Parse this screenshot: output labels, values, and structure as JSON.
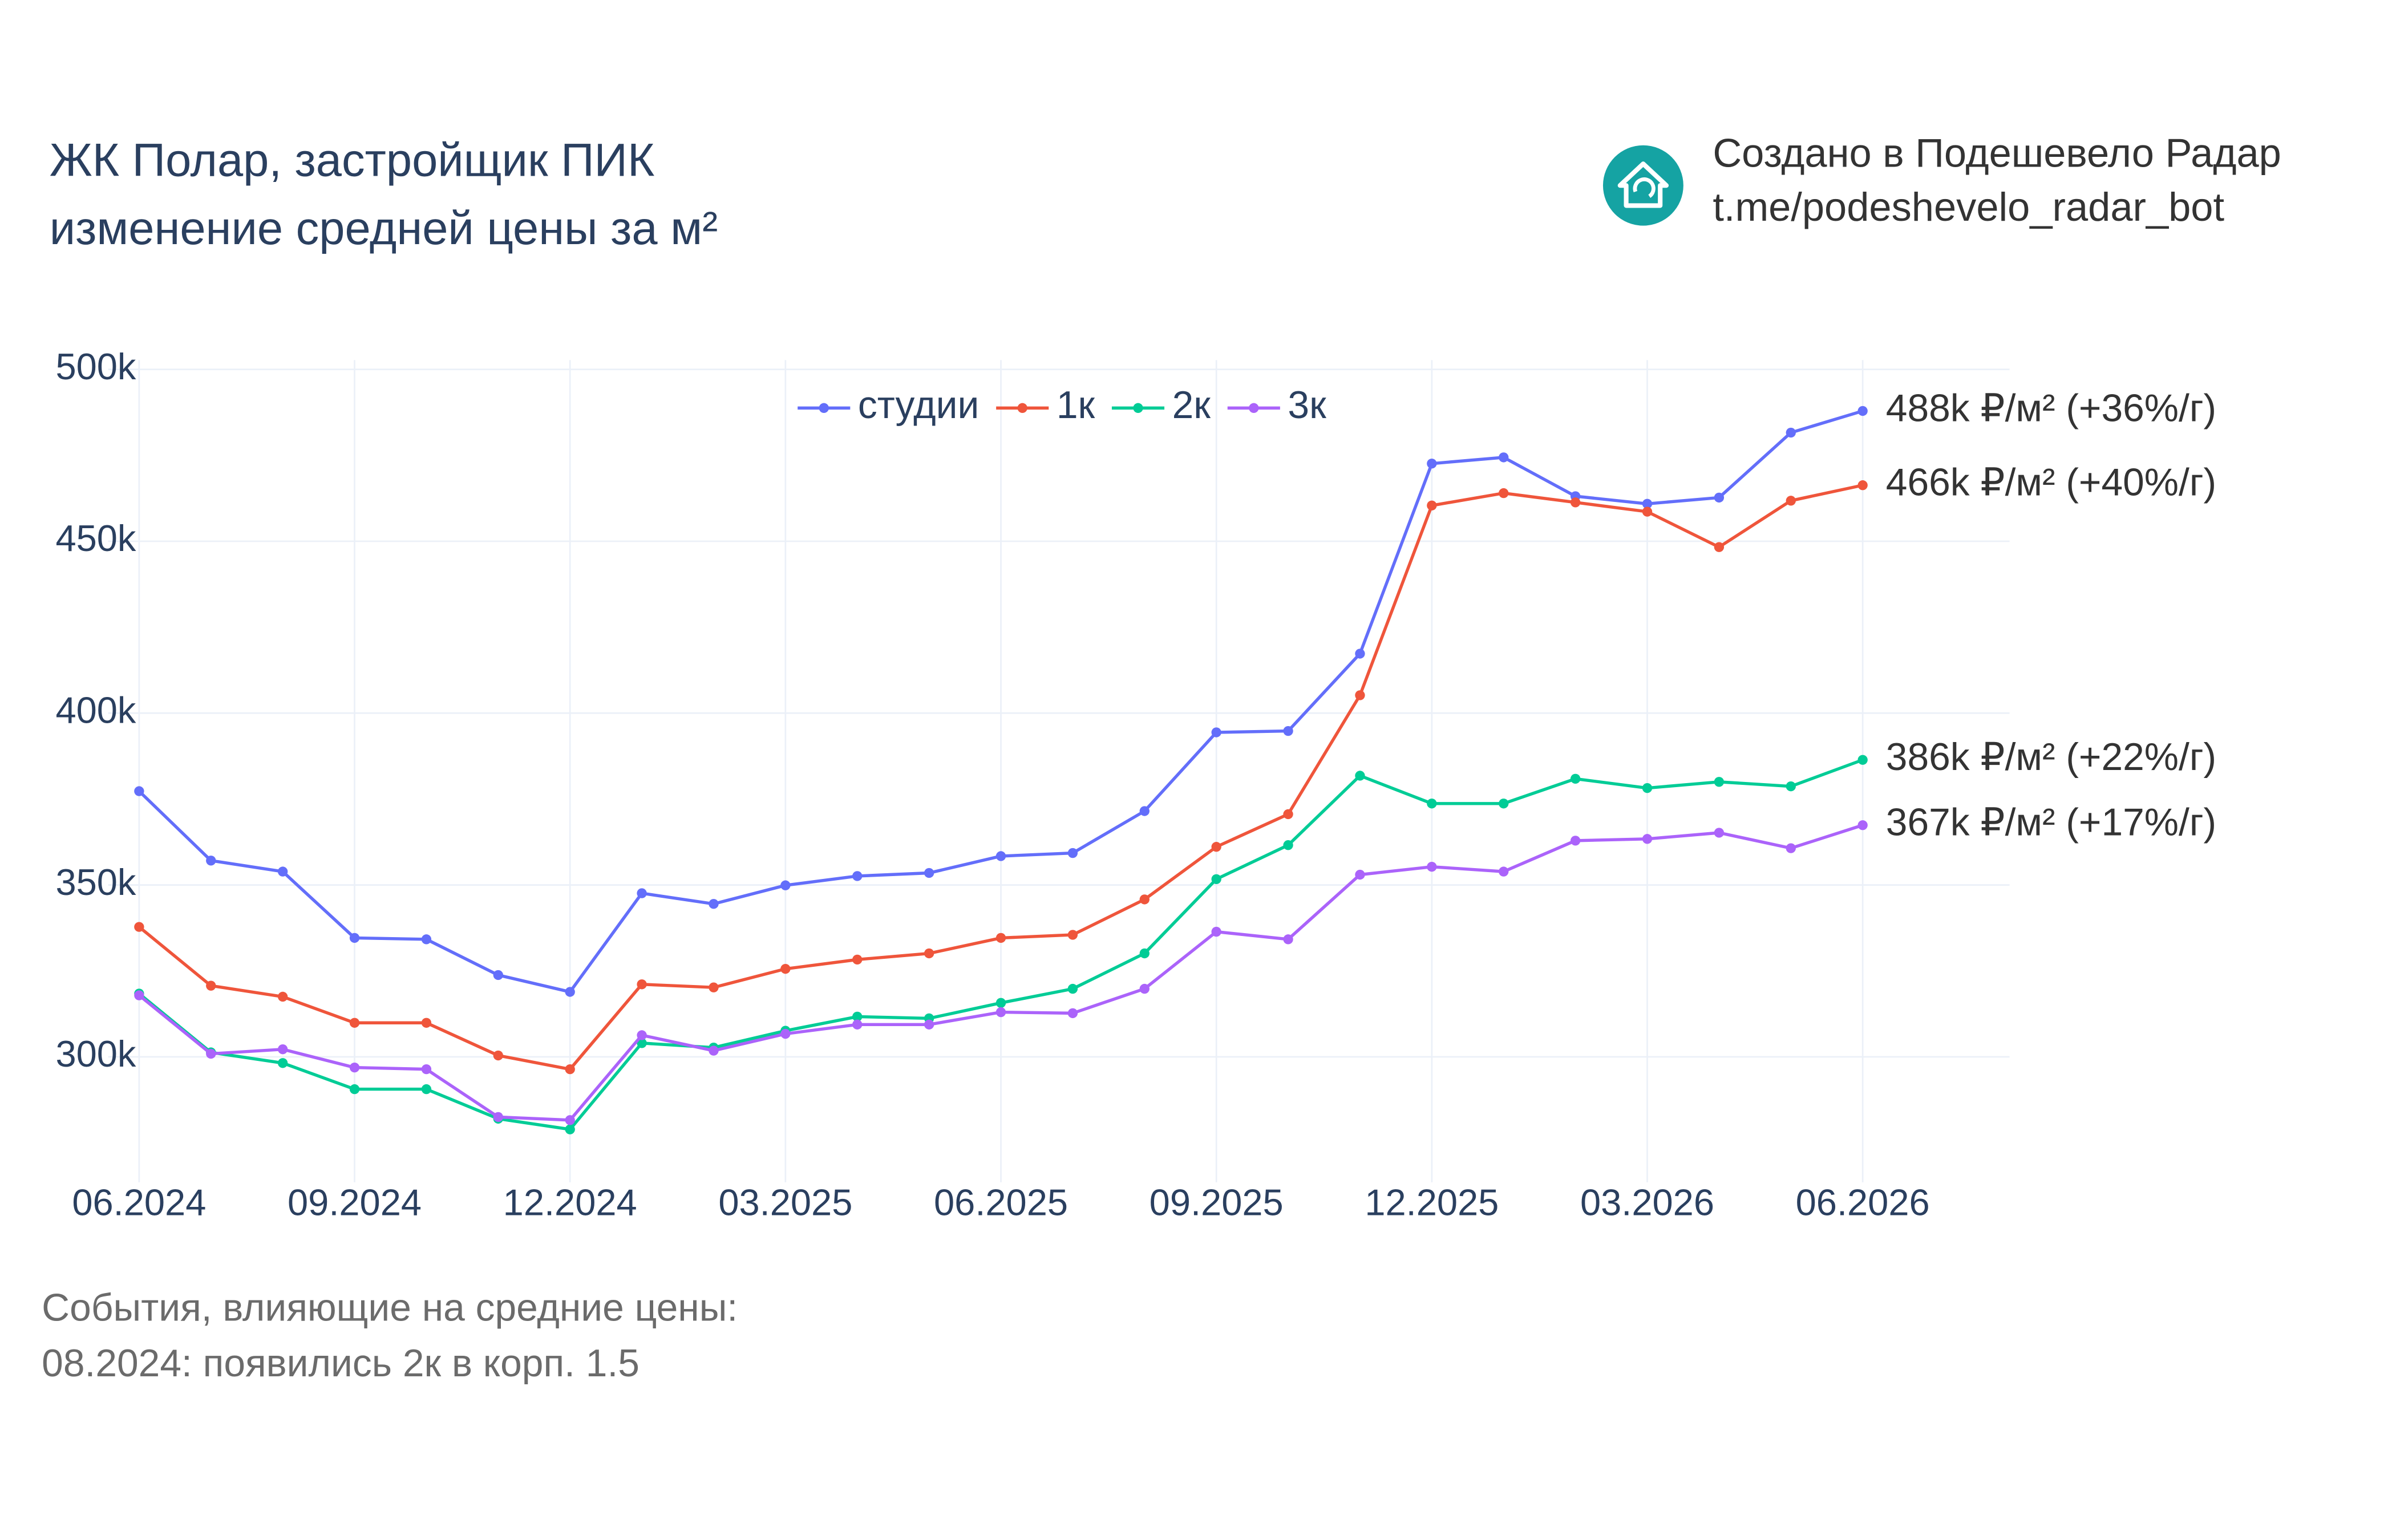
{
  "chart_data": {
    "type": "line",
    "title": [
      "ЖК Полар, застройщик ПИК",
      "изменение средней цены за м²"
    ],
    "credit": [
      "Создано в Подешевело Радар",
      "t.me/podeshevelo_radar_bot"
    ],
    "notes": [
      "События, влияющие на средние цены:",
      "08.2024: появились 2к в корп. 1.5"
    ],
    "categories": [
      "06.2024",
      null,
      null,
      "09.2024",
      null,
      null,
      "12.2024",
      null,
      null,
      "03.2025",
      null,
      null,
      "06.2025",
      null,
      null,
      "09.2025",
      null,
      null,
      "12.2025",
      null,
      null,
      "03.2026",
      null,
      null,
      "06.2026"
    ],
    "ylim": [
      263500,
      502700
    ],
    "yticks": [
      {
        "value": 300000,
        "label": "300k"
      },
      {
        "value": 350000,
        "label": "350k"
      },
      {
        "value": 400000,
        "label": "400k"
      },
      {
        "value": 450000,
        "label": "450k"
      },
      {
        "value": 500000,
        "label": "500k"
      }
    ],
    "grid": true,
    "legend": "top",
    "series": [
      {
        "name": "студии",
        "color": "#636efa",
        "end_label": "488k ₽/м² (+36%/г)",
        "values": [
          377300,
          357100,
          353900,
          334600,
          334200,
          323800,
          318900,
          347600,
          344500,
          349900,
          352600,
          353500,
          358400,
          359300,
          371500,
          394400,
          394800,
          417300,
          472600,
          474400,
          463100,
          460900,
          462700,
          481600,
          487900
        ]
      },
      {
        "name": "1к",
        "color": "#ef553b",
        "end_label": "466k ₽/м² (+40%/г)",
        "values": [
          337800,
          320700,
          317500,
          309900,
          309900,
          300400,
          296400,
          321100,
          320200,
          325600,
          328300,
          330100,
          334600,
          335500,
          345800,
          361100,
          370600,
          405200,
          460400,
          464000,
          461300,
          458600,
          448300,
          461800,
          466300
        ]
      },
      {
        "name": "2к",
        "color": "#00cc96",
        "end_label": "386k ₽/м² (+22%/г)",
        "values": [
          318400,
          301300,
          298200,
          290600,
          290600,
          282000,
          278900,
          304000,
          302700,
          307600,
          311700,
          311200,
          315700,
          319800,
          330100,
          351700,
          361600,
          381800,
          373700,
          373700,
          380900,
          378200,
          380000,
          378700,
          386400
        ]
      },
      {
        "name": "3к",
        "color": "#ab63fa",
        "end_label": "367k ₽/м² (+17%/г)",
        "values": [
          317900,
          300900,
          302200,
          296900,
          296400,
          282500,
          281600,
          306300,
          301800,
          306700,
          309400,
          309400,
          313000,
          312700,
          319800,
          336400,
          334200,
          353000,
          355300,
          353900,
          362900,
          363400,
          365200,
          360700,
          367400
        ]
      }
    ]
  }
}
